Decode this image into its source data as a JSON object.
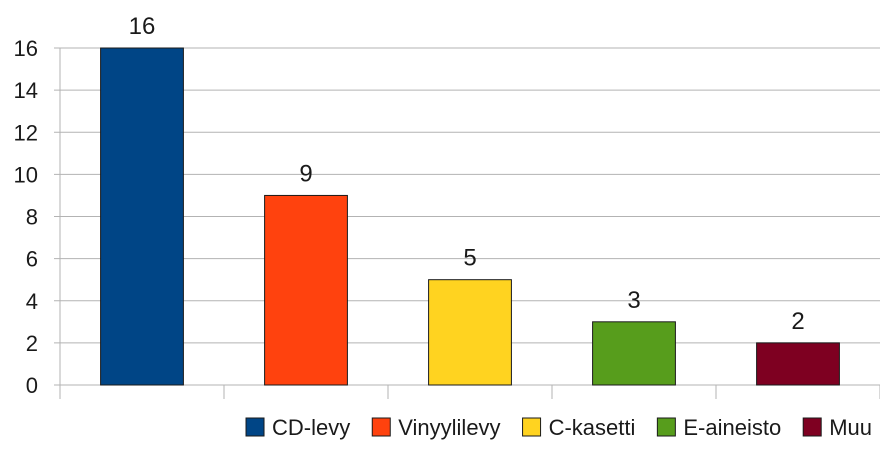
{
  "chart_data": {
    "type": "bar",
    "categories": [
      "CD-levy",
      "Vinyylilevy",
      "C-kasetti",
      "E-aineisto",
      "Muu"
    ],
    "values": [
      16,
      9,
      5,
      3,
      2
    ],
    "colors": [
      "#004586",
      "#ff420e",
      "#ffd320",
      "#579d1c",
      "#7e0021"
    ],
    "yticks": [
      0,
      2,
      4,
      6,
      8,
      10,
      12,
      14,
      16
    ],
    "ylim": [
      0,
      16
    ],
    "grid": true,
    "data_labels": true,
    "legend_position": "bottom"
  }
}
